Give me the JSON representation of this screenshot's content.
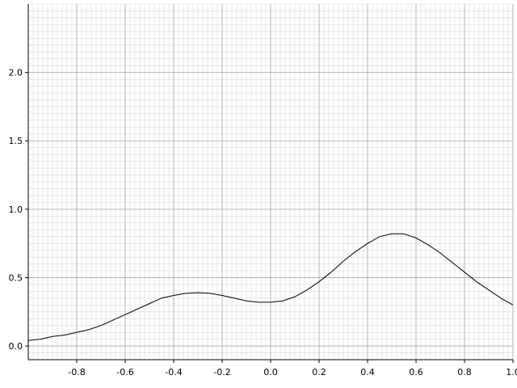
{
  "chart_data": {
    "type": "line",
    "title": "",
    "xlabel": "",
    "ylabel": "",
    "xlim": [
      -1.0,
      1.0
    ],
    "ylim": [
      -0.1,
      2.5
    ],
    "grid": true,
    "x_ticks": [
      -0.8,
      -0.6,
      -0.4,
      -0.2,
      0.0,
      0.2,
      0.4,
      0.6,
      0.8,
      1.0
    ],
    "x_tick_labels": [
      "-0.8",
      "-0.6",
      "-0.4",
      "-0.2",
      "0.0",
      "0.2",
      "0.4",
      "0.6",
      "0.8",
      "1.0"
    ],
    "y_ticks": [
      0.0,
      0.5,
      1.0,
      1.5,
      2.0
    ],
    "y_tick_labels": [
      "0.0",
      "0.5",
      "1.0",
      "1.5",
      "2.0"
    ],
    "series": [
      {
        "x": [
          -1.0,
          -0.95,
          -0.9,
          -0.85,
          -0.8,
          -0.75,
          -0.7,
          -0.65,
          -0.6,
          -0.55,
          -0.5,
          -0.45,
          -0.4,
          -0.35,
          -0.3,
          -0.25,
          -0.2,
          -0.15,
          -0.1,
          -0.05,
          0.0,
          0.05,
          0.1,
          0.15,
          0.2,
          0.25,
          0.3,
          0.35,
          0.4,
          0.45,
          0.5,
          0.55,
          0.6,
          0.65,
          0.7,
          0.75,
          0.8,
          0.85,
          0.9,
          0.95,
          1.0
        ],
        "values": [
          0.04,
          0.05,
          0.07,
          0.08,
          0.1,
          0.12,
          0.15,
          0.19,
          0.23,
          0.27,
          0.31,
          0.35,
          0.37,
          0.385,
          0.39,
          0.385,
          0.37,
          0.35,
          0.33,
          0.32,
          0.32,
          0.33,
          0.36,
          0.41,
          0.47,
          0.54,
          0.62,
          0.69,
          0.75,
          0.8,
          0.82,
          0.82,
          0.79,
          0.74,
          0.68,
          0.61,
          0.54,
          0.47,
          0.41,
          0.35,
          0.3
        ]
      }
    ],
    "colors": {
      "line": "#000000",
      "major_grid": "#a6a6a6",
      "minor_grid": "#d9d9d9",
      "axis": "#000000",
      "background": "#ffffff"
    }
  }
}
